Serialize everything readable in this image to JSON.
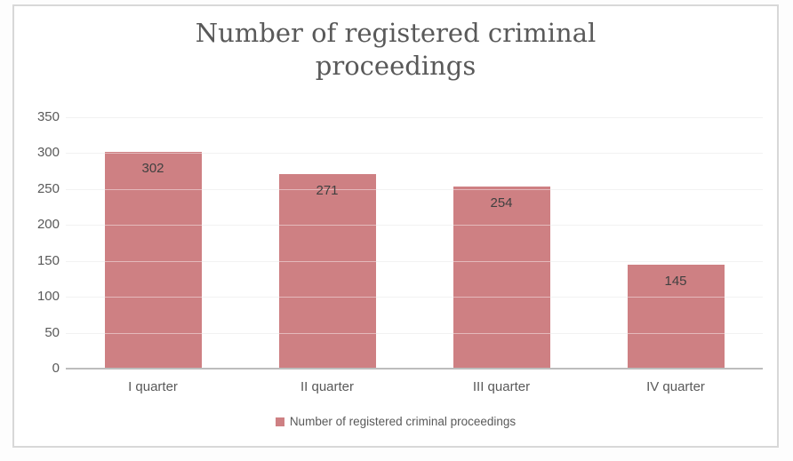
{
  "chart_data": {
    "type": "bar",
    "title": "Number of registered criminal proceedings",
    "categories": [
      "I quarter",
      "II quarter",
      "III quarter",
      "IV quarter"
    ],
    "values": [
      302,
      271,
      254,
      145
    ],
    "series_name": "Number of registered criminal proceedings",
    "xlabel": "",
    "ylabel": "",
    "ylim": [
      0,
      350
    ],
    "ytick_step": 50,
    "yticks": [
      0,
      50,
      100,
      150,
      200,
      250,
      300,
      350
    ],
    "grid": true,
    "legend_position": "bottom",
    "data_labels": "inside-end",
    "colors": {
      "bar_fill": "#ce8083",
      "title_text": "#595959",
      "axis_text": "#595959",
      "data_label_text": "#404040",
      "gridline": "#e8e8e8",
      "axis_line": "#bdbdbd",
      "frame_border": "#d8d8d8",
      "background": "#ffffff"
    }
  },
  "legend": {
    "label": "Number of registered criminal proceedings",
    "swatch_color": "#ce8083"
  }
}
